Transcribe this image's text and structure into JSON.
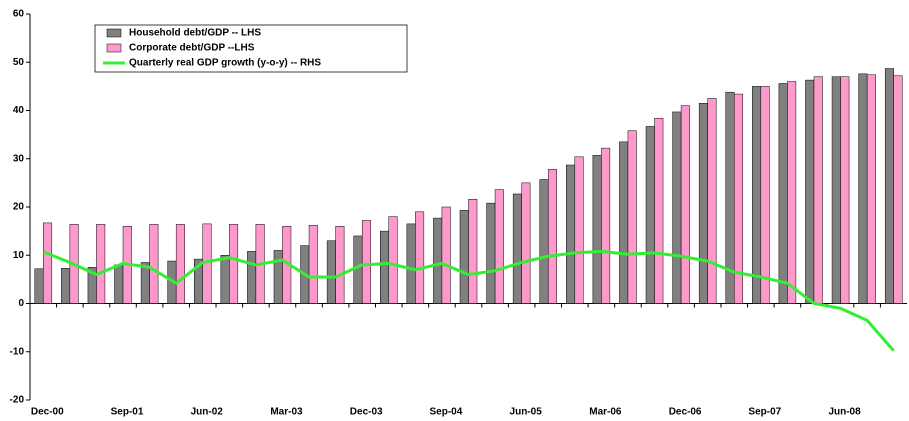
{
  "chart_data": {
    "type": "bar_line",
    "categories": [
      "Dec-00",
      null,
      null,
      "Sep-01",
      null,
      null,
      "Jun-02",
      null,
      null,
      "Mar-03",
      null,
      null,
      "Dec-03",
      null,
      null,
      "Sep-04",
      null,
      null,
      "Jun-05",
      null,
      null,
      "Mar-06",
      null,
      null,
      "Dec-06",
      null,
      null,
      "Sep-07",
      null,
      null,
      "Jun-08",
      null,
      null
    ],
    "series": [
      {
        "name": "Household debt/GDP  -- LHS",
        "type": "bar",
        "color": "#808080",
        "values": [
          7.2,
          7.3,
          7.5,
          8,
          8.5,
          8.8,
          9.2,
          10,
          10.8,
          11,
          12,
          13,
          14,
          15,
          16.5,
          17.7,
          19.3,
          20.8,
          22.7,
          25.7,
          28.7,
          30.7,
          33.5,
          36.7,
          39.7,
          41.5,
          43.8,
          45,
          45.6,
          46.3,
          47,
          47.6,
          48.7
        ]
      },
      {
        "name": "Corporate debt/GDP  --LHS",
        "type": "bar",
        "color": "#ff99cc",
        "values": [
          16.7,
          16.4,
          16.4,
          16,
          16.4,
          16.4,
          16.5,
          16.4,
          16.4,
          16,
          16.2,
          16,
          17.2,
          18,
          19,
          20,
          21.6,
          23.6,
          25,
          27.8,
          30.4,
          32.2,
          35.8,
          38.4,
          41,
          42.5,
          43.4,
          45,
          46,
          47,
          47,
          47.4,
          47.2
        ]
      },
      {
        "name": "Quarterly real GDP growth (y-o-y)  -- RHS",
        "type": "line",
        "color": "#33ee33",
        "values": [
          10.7,
          8.5,
          6,
          8.3,
          7.5,
          4.2,
          8.5,
          9.5,
          8,
          9,
          5.5,
          5.5,
          8,
          8.3,
          7,
          8.3,
          6,
          6.8,
          8.5,
          9.8,
          10.5,
          10.8,
          10.2,
          10.5,
          9.8,
          8.8,
          6.5,
          5.5,
          4.2,
          0,
          -1,
          -3.5,
          -9.8
        ]
      }
    ],
    "ylim": [
      -20,
      60
    ],
    "yticks": [
      -20,
      -10,
      0,
      10,
      20,
      30,
      40,
      50,
      60
    ],
    "legend": "top-left"
  }
}
